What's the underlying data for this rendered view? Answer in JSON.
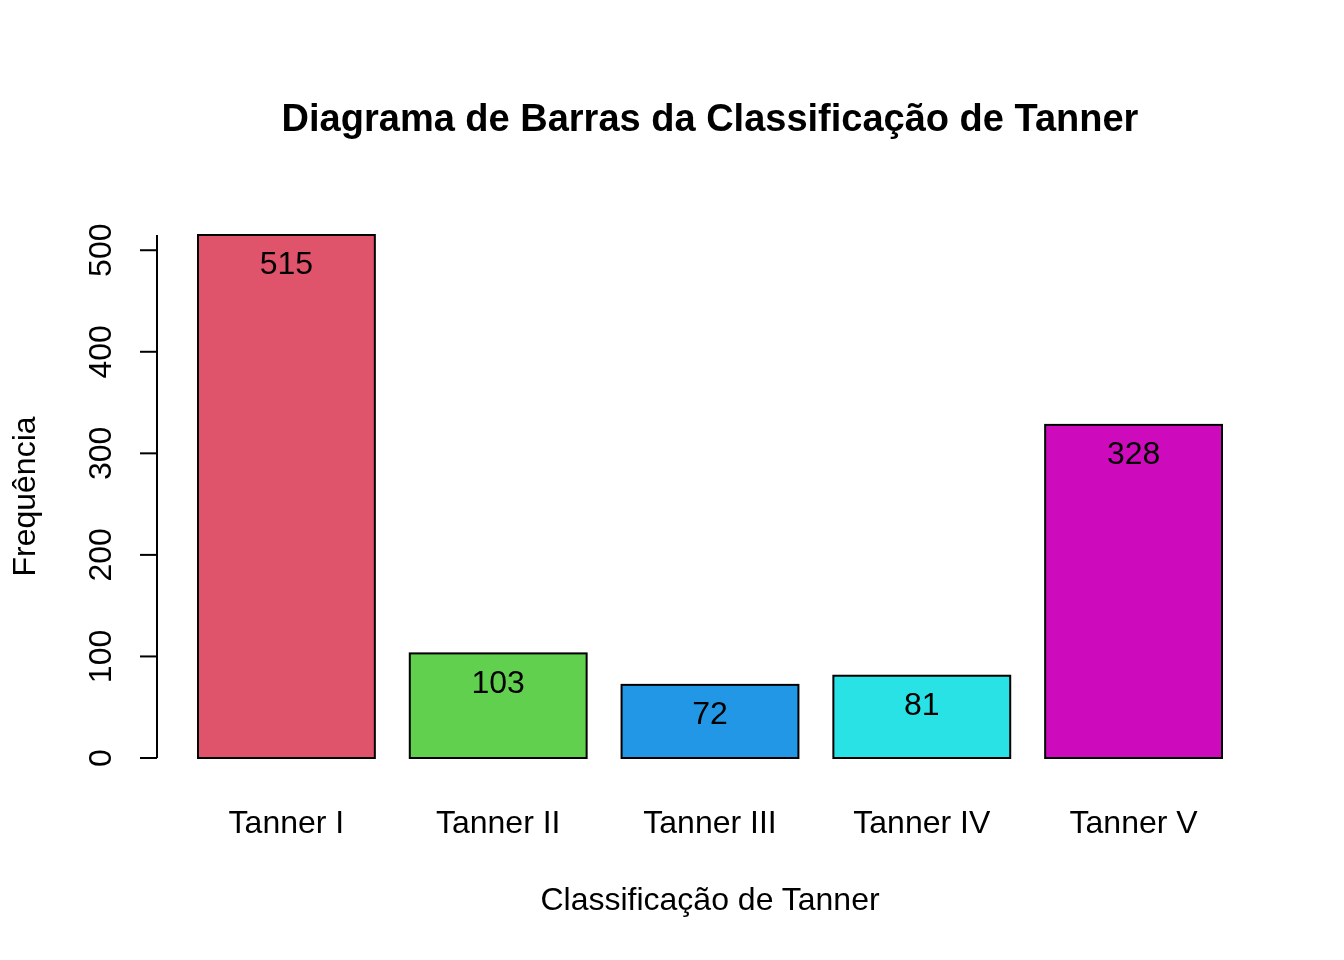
{
  "chart_data": {
    "type": "bar",
    "title": "Diagrama de Barras da Classificação de Tanner",
    "xlabel": "Classificação de Tanner",
    "ylabel": "Frequência",
    "categories": [
      "Tanner I",
      "Tanner II",
      "Tanner III",
      "Tanner IV",
      "Tanner V"
    ],
    "values": [
      515,
      103,
      72,
      81,
      328
    ],
    "colors": [
      "#df536b",
      "#61d04f",
      "#2297e6",
      "#28e2e5",
      "#cd0bbc"
    ],
    "ylim": [
      0,
      515
    ],
    "yticks": [
      0,
      100,
      200,
      300,
      400,
      500
    ],
    "data_labels": true
  }
}
